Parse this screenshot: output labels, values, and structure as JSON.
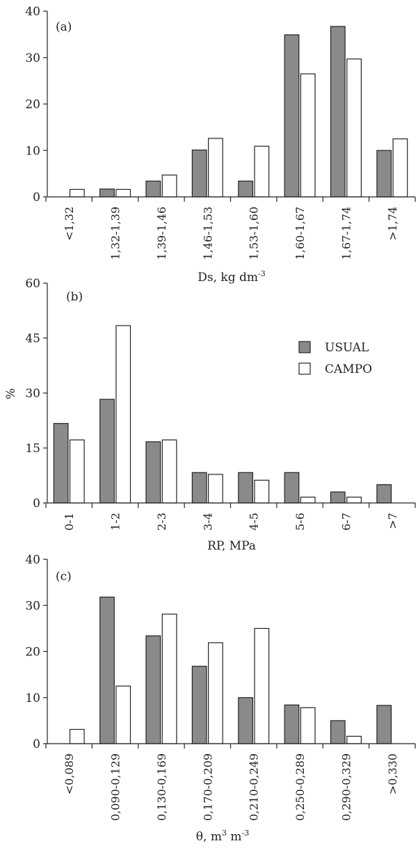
{
  "colors": {
    "usual": "#8a8a8a",
    "campo": "#ffffff",
    "stroke": "#222222"
  },
  "legend": {
    "placement": "right-middle of panel (b)",
    "items": [
      {
        "label": "USUAL",
        "color": "#8a8a8a"
      },
      {
        "label": "CAMPO",
        "color": "#ffffff"
      }
    ]
  },
  "panels": [
    {
      "tag": "(a)",
      "xlabel": "Ds, kg dm",
      "xlabel_sup": "-3",
      "ylabel": ""
    },
    {
      "tag": "(b)",
      "xlabel": "RP, MPa",
      "xlabel_sup": "",
      "ylabel": "%"
    },
    {
      "tag": "(c)",
      "xlabel": "θ, m",
      "xlabel_mid": " m",
      "xlabel_sup": "3",
      "xlabel_sup2": "-3",
      "ylabel": ""
    }
  ],
  "chart_data": [
    {
      "type": "bar",
      "categories": [
        "<1,32",
        "1,32-1,39",
        "1,39-1,46",
        "1,46-1,53",
        "1,53-1,60",
        "1,60-1,67",
        "1,67-1,74",
        ">1,74"
      ],
      "series": [
        {
          "name": "USUAL",
          "values": [
            0,
            1.7,
            3.4,
            10.1,
            3.4,
            34.9,
            36.7,
            10.0
          ]
        },
        {
          "name": "CAMPO",
          "values": [
            1.6,
            1.6,
            4.7,
            12.6,
            10.9,
            26.5,
            29.7,
            12.5
          ]
        }
      ],
      "xlabel": "Ds, kg dm-3",
      "ylabel": "",
      "ylim": [
        0,
        40
      ],
      "yticks": [
        0,
        10,
        20,
        30,
        40
      ],
      "grid": false
    },
    {
      "type": "bar",
      "categories": [
        "0-1",
        "1-2",
        "2-3",
        "3-4",
        "4-5",
        "5-6",
        "6-7",
        ">7"
      ],
      "series": [
        {
          "name": "USUAL",
          "values": [
            21.7,
            28.3,
            16.7,
            8.3,
            8.3,
            8.3,
            3.0,
            5.0
          ]
        },
        {
          "name": "CAMPO",
          "values": [
            17.2,
            48.4,
            17.2,
            7.8,
            6.2,
            1.6,
            1.6,
            0
          ]
        }
      ],
      "xlabel": "RP, MPa",
      "ylabel": "%",
      "ylim": [
        0,
        60
      ],
      "yticks": [
        0,
        15,
        30,
        45,
        60
      ],
      "grid": false
    },
    {
      "type": "bar",
      "categories": [
        "<0,089",
        "0,090-0,129",
        "0,130-0,169",
        "0,170-0,209",
        "0,210-0,249",
        "0,250-0,289",
        "0,290-0,329",
        ">0,330"
      ],
      "series": [
        {
          "name": "USUAL",
          "values": [
            0,
            31.8,
            23.4,
            16.8,
            10.0,
            8.4,
            5.0,
            8.3
          ]
        },
        {
          "name": "CAMPO",
          "values": [
            3.1,
            12.5,
            28.1,
            21.9,
            25.0,
            7.8,
            1.6,
            0
          ]
        }
      ],
      "xlabel": "θ, m3 m-3",
      "ylabel": "",
      "ylim": [
        0,
        40
      ],
      "yticks": [
        0,
        10,
        20,
        30,
        40
      ],
      "grid": false
    }
  ]
}
